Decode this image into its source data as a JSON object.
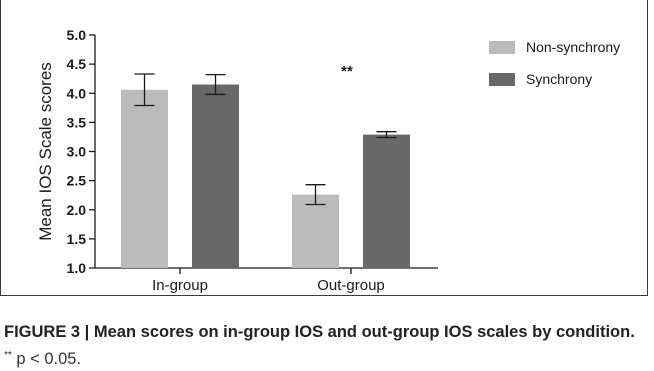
{
  "figure": {
    "label": "FIGURE 3 | ",
    "title": "Mean scores on in-group IOS and out-group IOS scales by condition.",
    "note_sup": "**",
    "note_text": " p < 0.05."
  },
  "chart_data": {
    "type": "bar",
    "categories": [
      "In-group",
      "Out-group"
    ],
    "series": [
      {
        "name": "Non-synchrony",
        "color": "#bbbbbb",
        "values": [
          4.06,
          2.26
        ],
        "error": [
          0.27,
          0.17
        ]
      },
      {
        "name": "Synchrony",
        "color": "#686868",
        "values": [
          4.15,
          3.29
        ],
        "error": [
          0.17,
          0.05
        ]
      }
    ],
    "ylabel": "Mean IOS Scale scores",
    "xlabel": "",
    "ylim": [
      1.0,
      5.0
    ],
    "yticks": [
      "1.0",
      "1.5",
      "2.0",
      "2.5",
      "3.0",
      "3.5",
      "4.0",
      "4.5",
      "5.0"
    ],
    "annotations": [
      {
        "text": "**",
        "category": "Out-group"
      }
    ],
    "legend_position": "top-right",
    "grid": false
  }
}
